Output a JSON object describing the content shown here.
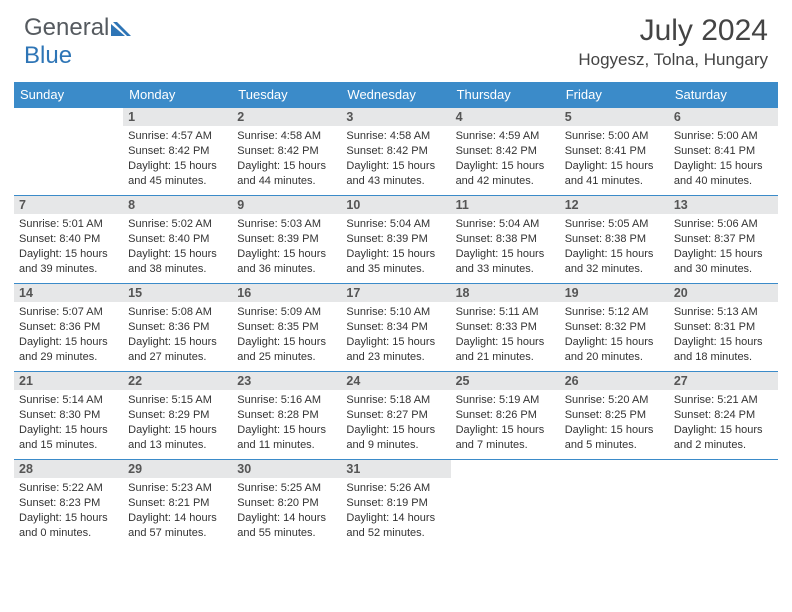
{
  "logo": {
    "general": "General",
    "blue": "Blue"
  },
  "title": "July 2024",
  "location": "Hogyesz, Tolna, Hungary",
  "colors": {
    "header_bg": "#3b8bc9",
    "header_text": "#ffffff",
    "daynum_bg": "#e6e7e8",
    "row_border": "#3b8bc9",
    "logo_blue": "#2e75b6",
    "logo_gray": "#555a5f"
  },
  "weekdays": [
    "Sunday",
    "Monday",
    "Tuesday",
    "Wednesday",
    "Thursday",
    "Friday",
    "Saturday"
  ],
  "weeks": [
    [
      {
        "day": "",
        "sunrise": "",
        "sunset": "",
        "daylight": ""
      },
      {
        "day": "1",
        "sunrise": "Sunrise: 4:57 AM",
        "sunset": "Sunset: 8:42 PM",
        "daylight": "Daylight: 15 hours and 45 minutes."
      },
      {
        "day": "2",
        "sunrise": "Sunrise: 4:58 AM",
        "sunset": "Sunset: 8:42 PM",
        "daylight": "Daylight: 15 hours and 44 minutes."
      },
      {
        "day": "3",
        "sunrise": "Sunrise: 4:58 AM",
        "sunset": "Sunset: 8:42 PM",
        "daylight": "Daylight: 15 hours and 43 minutes."
      },
      {
        "day": "4",
        "sunrise": "Sunrise: 4:59 AM",
        "sunset": "Sunset: 8:42 PM",
        "daylight": "Daylight: 15 hours and 42 minutes."
      },
      {
        "day": "5",
        "sunrise": "Sunrise: 5:00 AM",
        "sunset": "Sunset: 8:41 PM",
        "daylight": "Daylight: 15 hours and 41 minutes."
      },
      {
        "day": "6",
        "sunrise": "Sunrise: 5:00 AM",
        "sunset": "Sunset: 8:41 PM",
        "daylight": "Daylight: 15 hours and 40 minutes."
      }
    ],
    [
      {
        "day": "7",
        "sunrise": "Sunrise: 5:01 AM",
        "sunset": "Sunset: 8:40 PM",
        "daylight": "Daylight: 15 hours and 39 minutes."
      },
      {
        "day": "8",
        "sunrise": "Sunrise: 5:02 AM",
        "sunset": "Sunset: 8:40 PM",
        "daylight": "Daylight: 15 hours and 38 minutes."
      },
      {
        "day": "9",
        "sunrise": "Sunrise: 5:03 AM",
        "sunset": "Sunset: 8:39 PM",
        "daylight": "Daylight: 15 hours and 36 minutes."
      },
      {
        "day": "10",
        "sunrise": "Sunrise: 5:04 AM",
        "sunset": "Sunset: 8:39 PM",
        "daylight": "Daylight: 15 hours and 35 minutes."
      },
      {
        "day": "11",
        "sunrise": "Sunrise: 5:04 AM",
        "sunset": "Sunset: 8:38 PM",
        "daylight": "Daylight: 15 hours and 33 minutes."
      },
      {
        "day": "12",
        "sunrise": "Sunrise: 5:05 AM",
        "sunset": "Sunset: 8:38 PM",
        "daylight": "Daylight: 15 hours and 32 minutes."
      },
      {
        "day": "13",
        "sunrise": "Sunrise: 5:06 AM",
        "sunset": "Sunset: 8:37 PM",
        "daylight": "Daylight: 15 hours and 30 minutes."
      }
    ],
    [
      {
        "day": "14",
        "sunrise": "Sunrise: 5:07 AM",
        "sunset": "Sunset: 8:36 PM",
        "daylight": "Daylight: 15 hours and 29 minutes."
      },
      {
        "day": "15",
        "sunrise": "Sunrise: 5:08 AM",
        "sunset": "Sunset: 8:36 PM",
        "daylight": "Daylight: 15 hours and 27 minutes."
      },
      {
        "day": "16",
        "sunrise": "Sunrise: 5:09 AM",
        "sunset": "Sunset: 8:35 PM",
        "daylight": "Daylight: 15 hours and 25 minutes."
      },
      {
        "day": "17",
        "sunrise": "Sunrise: 5:10 AM",
        "sunset": "Sunset: 8:34 PM",
        "daylight": "Daylight: 15 hours and 23 minutes."
      },
      {
        "day": "18",
        "sunrise": "Sunrise: 5:11 AM",
        "sunset": "Sunset: 8:33 PM",
        "daylight": "Daylight: 15 hours and 21 minutes."
      },
      {
        "day": "19",
        "sunrise": "Sunrise: 5:12 AM",
        "sunset": "Sunset: 8:32 PM",
        "daylight": "Daylight: 15 hours and 20 minutes."
      },
      {
        "day": "20",
        "sunrise": "Sunrise: 5:13 AM",
        "sunset": "Sunset: 8:31 PM",
        "daylight": "Daylight: 15 hours and 18 minutes."
      }
    ],
    [
      {
        "day": "21",
        "sunrise": "Sunrise: 5:14 AM",
        "sunset": "Sunset: 8:30 PM",
        "daylight": "Daylight: 15 hours and 15 minutes."
      },
      {
        "day": "22",
        "sunrise": "Sunrise: 5:15 AM",
        "sunset": "Sunset: 8:29 PM",
        "daylight": "Daylight: 15 hours and 13 minutes."
      },
      {
        "day": "23",
        "sunrise": "Sunrise: 5:16 AM",
        "sunset": "Sunset: 8:28 PM",
        "daylight": "Daylight: 15 hours and 11 minutes."
      },
      {
        "day": "24",
        "sunrise": "Sunrise: 5:18 AM",
        "sunset": "Sunset: 8:27 PM",
        "daylight": "Daylight: 15 hours and 9 minutes."
      },
      {
        "day": "25",
        "sunrise": "Sunrise: 5:19 AM",
        "sunset": "Sunset: 8:26 PM",
        "daylight": "Daylight: 15 hours and 7 minutes."
      },
      {
        "day": "26",
        "sunrise": "Sunrise: 5:20 AM",
        "sunset": "Sunset: 8:25 PM",
        "daylight": "Daylight: 15 hours and 5 minutes."
      },
      {
        "day": "27",
        "sunrise": "Sunrise: 5:21 AM",
        "sunset": "Sunset: 8:24 PM",
        "daylight": "Daylight: 15 hours and 2 minutes."
      }
    ],
    [
      {
        "day": "28",
        "sunrise": "Sunrise: 5:22 AM",
        "sunset": "Sunset: 8:23 PM",
        "daylight": "Daylight: 15 hours and 0 minutes."
      },
      {
        "day": "29",
        "sunrise": "Sunrise: 5:23 AM",
        "sunset": "Sunset: 8:21 PM",
        "daylight": "Daylight: 14 hours and 57 minutes."
      },
      {
        "day": "30",
        "sunrise": "Sunrise: 5:25 AM",
        "sunset": "Sunset: 8:20 PM",
        "daylight": "Daylight: 14 hours and 55 minutes."
      },
      {
        "day": "31",
        "sunrise": "Sunrise: 5:26 AM",
        "sunset": "Sunset: 8:19 PM",
        "daylight": "Daylight: 14 hours and 52 minutes."
      },
      {
        "day": "",
        "sunrise": "",
        "sunset": "",
        "daylight": ""
      },
      {
        "day": "",
        "sunrise": "",
        "sunset": "",
        "daylight": ""
      },
      {
        "day": "",
        "sunrise": "",
        "sunset": "",
        "daylight": ""
      }
    ]
  ]
}
